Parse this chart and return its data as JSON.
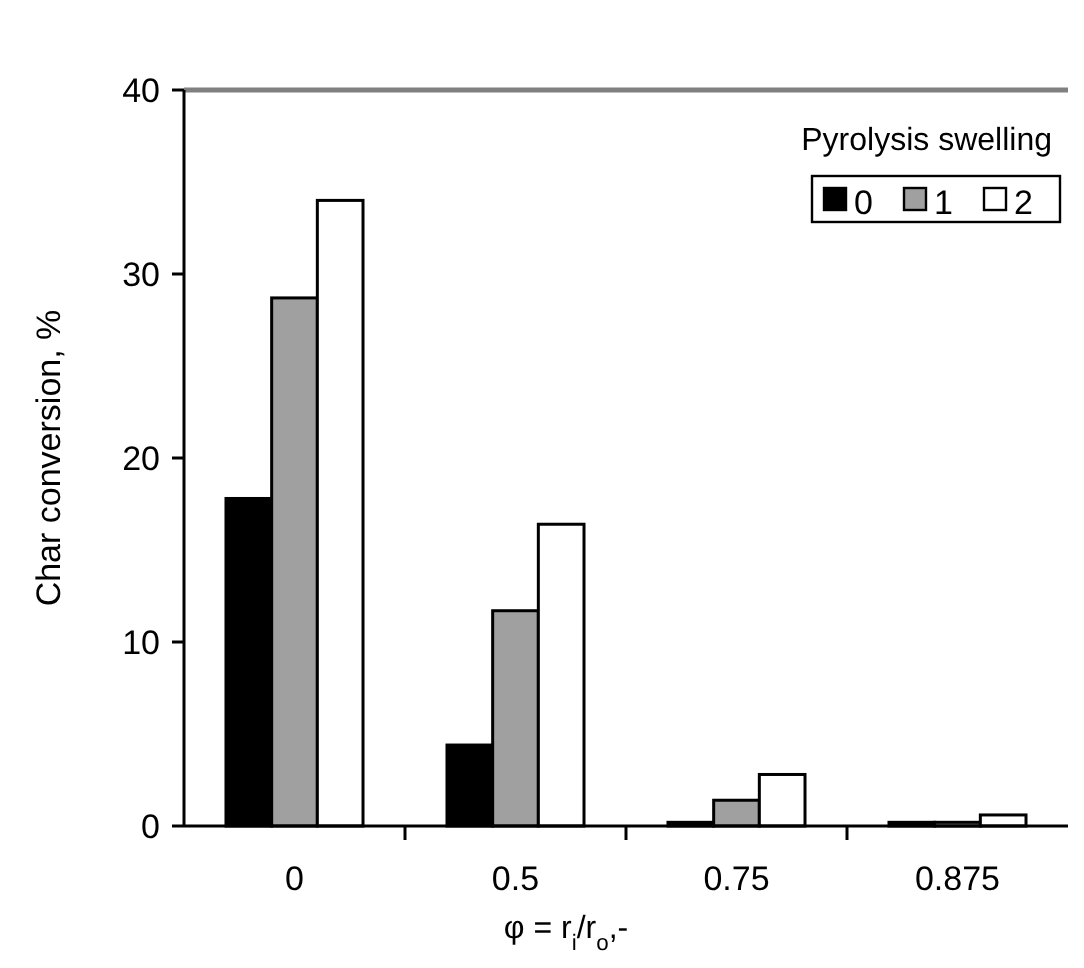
{
  "chart_data": {
    "type": "bar",
    "xlabel": "φ = r$_{i}$/r$_{o}$,-",
    "ylabel": "Char conversion, %",
    "legend_title": "Pyrolysis swelling",
    "categories": [
      "0",
      "0.5",
      "0.75",
      "0.875"
    ],
    "series": [
      {
        "name": "0",
        "color": "#000000",
        "values": [
          17.8,
          4.4,
          0.2,
          0.2
        ]
      },
      {
        "name": "1",
        "color": "#a0a0a0",
        "values": [
          28.7,
          11.7,
          1.4,
          0.2
        ]
      },
      {
        "name": "2",
        "color": "#ffffff",
        "values": [
          34.0,
          16.4,
          2.8,
          0.6
        ]
      }
    ],
    "ylim": [
      0,
      40
    ],
    "yticks": [
      0,
      10,
      20,
      30,
      40
    ],
    "grid": false,
    "legend": "top right"
  }
}
